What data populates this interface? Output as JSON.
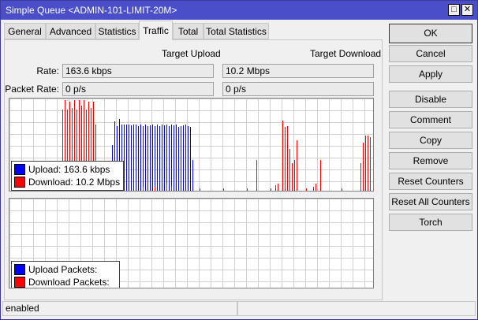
{
  "window": {
    "title": "Simple Queue <ADMIN-101-LIMIT-20M>",
    "maximize_icon": "square-icon",
    "close_icon": "x-icon"
  },
  "tabs": [
    {
      "label": "General"
    },
    {
      "label": "Advanced"
    },
    {
      "label": "Statistics"
    },
    {
      "label": "Traffic",
      "active": true
    },
    {
      "label": "Total"
    },
    {
      "label": "Total Statistics"
    }
  ],
  "traffic": {
    "col_upload": "Target Upload",
    "col_download": "Target Download",
    "rate_label": "Rate:",
    "rate_upload": "163.6 kbps",
    "rate_download": "10.2 Mbps",
    "packet_rate_label": "Packet Rate:",
    "packet_upload": "0 p/s",
    "packet_download": "0 p/s"
  },
  "rate_graph": {
    "colors": {
      "upload": "#0000ff",
      "download": "#ff0000"
    },
    "legend": {
      "upload_label": "Upload:",
      "upload_value": "163.6 kbps",
      "download_label": "Download:",
      "download_value": "10.2 Mbps"
    },
    "download_bars": [
      [
        22,
        88
      ],
      [
        23,
        98
      ],
      [
        24,
        88
      ],
      [
        25,
        97
      ],
      [
        26,
        90
      ],
      [
        27,
        98
      ],
      [
        28,
        88
      ],
      [
        29,
        98
      ],
      [
        30,
        92
      ],
      [
        31,
        98
      ],
      [
        32,
        88
      ],
      [
        33,
        97
      ],
      [
        34,
        90
      ],
      [
        35,
        97
      ],
      [
        36,
        72
      ],
      [
        104,
        33
      ],
      [
        115,
        76
      ],
      [
        116,
        69
      ],
      [
        117,
        70
      ],
      [
        118,
        45
      ],
      [
        119,
        30
      ],
      [
        120,
        33
      ],
      [
        121,
        55
      ],
      [
        131,
        33
      ],
      [
        148,
        30
      ],
      [
        149,
        52
      ],
      [
        150,
        60
      ],
      [
        151,
        60
      ],
      [
        152,
        58
      ],
      [
        66,
        8
      ],
      [
        68,
        5
      ],
      [
        56,
        4
      ],
      [
        61,
        4
      ],
      [
        80,
        3
      ],
      [
        90,
        3
      ],
      [
        100,
        3
      ],
      [
        110,
        3
      ],
      [
        125,
        3
      ],
      [
        140,
        3
      ],
      [
        10,
        2
      ],
      [
        19,
        2
      ],
      [
        40,
        2
      ],
      [
        5,
        2
      ],
      [
        112,
        6
      ],
      [
        113,
        8
      ],
      [
        128,
        4
      ],
      [
        129,
        8
      ]
    ],
    "upload_bars": [
      [
        43,
        50
      ],
      [
        44,
        75
      ],
      [
        45,
        70
      ],
      [
        46,
        78
      ],
      [
        47,
        72
      ],
      [
        48,
        72
      ],
      [
        49,
        72
      ],
      [
        50,
        72
      ],
      [
        51,
        71
      ],
      [
        52,
        72
      ],
      [
        53,
        72
      ],
      [
        54,
        70
      ],
      [
        55,
        72
      ],
      [
        56,
        70
      ],
      [
        57,
        72
      ],
      [
        58,
        70
      ],
      [
        59,
        71
      ],
      [
        60,
        72
      ],
      [
        61,
        70
      ],
      [
        62,
        72
      ],
      [
        63,
        70
      ],
      [
        64,
        72
      ],
      [
        65,
        71
      ],
      [
        66,
        72
      ],
      [
        67,
        70
      ],
      [
        68,
        72
      ],
      [
        69,
        71
      ],
      [
        70,
        72
      ],
      [
        71,
        69
      ],
      [
        72,
        70
      ],
      [
        73,
        71
      ],
      [
        74,
        72
      ],
      [
        75,
        70
      ],
      [
        76,
        69
      ],
      [
        77,
        33
      ],
      [
        15,
        2
      ],
      [
        116,
        2
      ],
      [
        150,
        2
      ]
    ]
  },
  "packet_graph": {
    "legend": {
      "upload_label": "Upload Packets:",
      "download_label": "Download Packets:"
    }
  },
  "buttons": {
    "ok": "OK",
    "cancel": "Cancel",
    "apply": "Apply",
    "disable": "Disable",
    "comment": "Comment",
    "copy": "Copy",
    "remove": "Remove",
    "reset_counters": "Reset Counters",
    "reset_all_counters": "Reset All Counters",
    "torch": "Torch"
  },
  "status": {
    "state": "enabled"
  }
}
